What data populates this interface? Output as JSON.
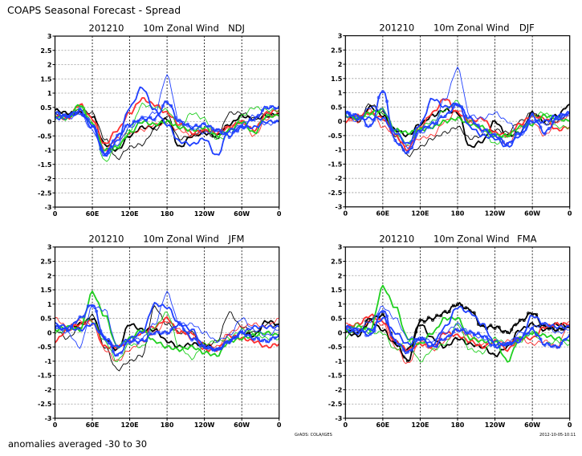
{
  "header": {
    "title": "COAPS Seasonal Forecast - Spread",
    "footnote": "anomalies averaged -30 to 30",
    "credit": "GrADS: COLA/IGES",
    "timestamp": "2012-10-05-10:11"
  },
  "colors": {
    "black": "#000000",
    "red": "#ff3030",
    "green": "#20d020",
    "blue": "#2040ff"
  },
  "chart_data": [
    {
      "type": "line",
      "init": "201210",
      "variable": "10m Zonal Wind",
      "season": "NDJ",
      "x": [
        0,
        20,
        40,
        60,
        80,
        100,
        120,
        140,
        160,
        180,
        200,
        220,
        240,
        260,
        280,
        300,
        320,
        340,
        360
      ],
      "xlim": [
        0,
        360
      ],
      "ylim": [
        -3,
        3
      ],
      "xticks": [
        "0",
        "60E",
        "120E",
        "180",
        "120W",
        "60W",
        "0"
      ],
      "yticks": [
        "3",
        "2.5",
        "2",
        "1.5",
        "1",
        "0.5",
        "0",
        "-0.5",
        "-1",
        "-1.5",
        "-2",
        "-2.5",
        "-3"
      ],
      "grid": true,
      "series": [
        {
          "color": "black",
          "style": "thick",
          "values": [
            0.4,
            0.3,
            0.3,
            0.2,
            -0.8,
            -1.0,
            -0.5,
            -0.2,
            -0.2,
            0.1,
            -0.9,
            -0.5,
            -0.4,
            -0.5,
            -0.1,
            0.2,
            0.1,
            0.2,
            0.3
          ]
        },
        {
          "color": "black",
          "style": "thin",
          "values": [
            0.3,
            0.2,
            0.4,
            0.3,
            -0.6,
            -1.3,
            -0.9,
            -0.8,
            -0.3,
            0.2,
            -0.6,
            -0.5,
            -0.3,
            -0.6,
            0.3,
            0.3,
            0.1,
            0.3,
            0.2
          ]
        },
        {
          "color": "red",
          "style": "thick",
          "values": [
            0.2,
            0.1,
            0.6,
            0.1,
            -0.8,
            -0.3,
            0.3,
            0.8,
            0.6,
            0.3,
            -0.1,
            -0.4,
            -0.3,
            -0.4,
            -0.2,
            0.0,
            -0.3,
            0.3,
            0.4
          ]
        },
        {
          "color": "red",
          "style": "thin",
          "values": [
            0.1,
            0.2,
            0.3,
            0.0,
            -1.0,
            -0.6,
            -0.4,
            -0.3,
            -0.1,
            -0.1,
            -0.3,
            -0.5,
            -0.3,
            -0.3,
            -0.2,
            0.0,
            -0.5,
            0.1,
            0.3
          ]
        },
        {
          "color": "green",
          "style": "thick",
          "values": [
            0.2,
            0.1,
            0.6,
            -0.1,
            -1.0,
            -0.9,
            -0.4,
            0.0,
            -0.1,
            0.0,
            -0.2,
            -0.3,
            -0.2,
            -0.5,
            -0.3,
            0.0,
            -0.4,
            0.2,
            0.2
          ]
        },
        {
          "color": "green",
          "style": "thin",
          "values": [
            0.1,
            0.2,
            0.5,
            0.0,
            -1.4,
            -0.9,
            -0.3,
            0.6,
            0.5,
            0.4,
            -0.2,
            0.3,
            0.1,
            -0.6,
            -0.5,
            0.2,
            0.5,
            0.4,
            0.4
          ]
        },
        {
          "color": "blue",
          "style": "thick",
          "values": [
            0.1,
            0.2,
            0.3,
            -0.2,
            -1.1,
            -0.7,
            0.5,
            1.2,
            0.4,
            -0.1,
            -0.7,
            -0.8,
            -0.6,
            -1.2,
            -0.3,
            -0.2,
            -0.2,
            0.0,
            0.0
          ]
        },
        {
          "color": "blue",
          "style": "thin",
          "values": [
            0.2,
            0.1,
            0.3,
            -0.3,
            -1.2,
            -0.8,
            -0.2,
            0.1,
            0.3,
            1.6,
            0.0,
            -0.2,
            -0.4,
            -0.3,
            -0.4,
            -0.1,
            0.2,
            -0.1,
            0.0
          ]
        },
        {
          "color": "blue",
          "style": "circles",
          "values": [
            0.3,
            0.2,
            0.4,
            -0.1,
            -1.2,
            -0.5,
            -0.1,
            0.1,
            0.1,
            0.7,
            0.0,
            -0.2,
            -0.1,
            -0.3,
            -0.5,
            -0.2,
            0.1,
            0.5,
            0.5
          ]
        }
      ]
    },
    {
      "type": "line",
      "init": "201210",
      "variable": "10m Zonal Wind",
      "season": "DJF",
      "x": [
        0,
        20,
        40,
        60,
        80,
        100,
        120,
        140,
        160,
        180,
        200,
        220,
        240,
        260,
        280,
        300,
        320,
        340,
        360
      ],
      "xlim": [
        0,
        360
      ],
      "ylim": [
        -3,
        3
      ],
      "xticks": [
        "0",
        "60E",
        "120E",
        "180",
        "120W",
        "60W",
        "0"
      ],
      "yticks": [
        "3",
        "2.5",
        "2",
        "1.5",
        "1",
        "0.5",
        "0",
        "-0.5",
        "-1",
        "-1.5",
        "-2",
        "-2.5",
        "-3"
      ],
      "grid": true,
      "series": [
        {
          "color": "black",
          "style": "thick",
          "values": [
            0.3,
            0.0,
            0.5,
            0.2,
            -0.3,
            -0.5,
            -0.1,
            0.2,
            0.4,
            0.3,
            -0.9,
            -0.7,
            0.0,
            -0.5,
            -0.4,
            0.3,
            0.0,
            0.2,
            0.6
          ]
        },
        {
          "color": "black",
          "style": "thin",
          "values": [
            0.2,
            0.1,
            0.6,
            0.3,
            -0.5,
            -1.2,
            -0.9,
            -0.6,
            -0.4,
            -0.2,
            -0.6,
            -0.5,
            -0.3,
            -0.4,
            0.0,
            0.3,
            -0.1,
            0.0,
            0.3
          ]
        },
        {
          "color": "red",
          "style": "thick",
          "values": [
            0.0,
            0.2,
            0.3,
            0.1,
            -0.5,
            -1.0,
            -0.2,
            0.3,
            0.8,
            0.3,
            0.0,
            0.1,
            -0.4,
            -0.5,
            -0.1,
            0.2,
            0.1,
            -0.3,
            -0.2
          ]
        },
        {
          "color": "red",
          "style": "thin",
          "values": [
            0.1,
            0.0,
            0.4,
            -0.2,
            -0.4,
            -0.9,
            -0.6,
            -0.5,
            0.0,
            0.4,
            0.0,
            -0.3,
            -0.5,
            -0.8,
            -0.2,
            0.0,
            -0.5,
            0.0,
            0.2
          ]
        },
        {
          "color": "green",
          "style": "thick",
          "values": [
            0.2,
            0.1,
            0.3,
            0.4,
            -0.3,
            -0.4,
            -0.3,
            -0.2,
            0.0,
            0.1,
            -0.1,
            -0.2,
            -0.5,
            -0.5,
            -0.2,
            -0.1,
            0.2,
            0.1,
            0.0
          ]
        },
        {
          "color": "green",
          "style": "thin",
          "values": [
            0.3,
            0.1,
            0.2,
            0.3,
            -0.4,
            -0.8,
            -0.2,
            0.0,
            0.4,
            0.7,
            0.0,
            -0.3,
            -0.8,
            -0.5,
            -0.4,
            0.2,
            0.3,
            -0.2,
            -0.2
          ]
        },
        {
          "color": "blue",
          "style": "thick",
          "values": [
            0.3,
            0.1,
            0.1,
            0.1,
            -0.4,
            -0.8,
            -0.1,
            0.8,
            0.5,
            0.6,
            -0.2,
            -0.5,
            -0.6,
            -0.9,
            -0.5,
            0.0,
            0.0,
            0.2,
            0.3
          ]
        },
        {
          "color": "blue",
          "style": "thin",
          "values": [
            0.2,
            0.0,
            0.5,
            0.4,
            -0.3,
            -0.9,
            -0.4,
            -0.2,
            0.8,
            1.85,
            0.2,
            0.1,
            0.3,
            0.0,
            -0.5,
            0.0,
            -0.1,
            0.1,
            0.2
          ]
        },
        {
          "color": "blue",
          "style": "circles",
          "values": [
            0.3,
            0.2,
            -0.2,
            1.1,
            -0.7,
            -1.1,
            -0.3,
            -0.1,
            0.2,
            0.6,
            0.1,
            -0.3,
            -0.5,
            -0.8,
            -0.4,
            0.2,
            -0.4,
            0.1,
            0.3
          ]
        }
      ]
    },
    {
      "type": "line",
      "init": "201210",
      "variable": "10m Zonal Wind",
      "season": "JFM",
      "x": [
        0,
        20,
        40,
        60,
        80,
        100,
        120,
        140,
        160,
        180,
        200,
        220,
        240,
        260,
        280,
        300,
        320,
        340,
        360
      ],
      "xlim": [
        0,
        360
      ],
      "ylim": [
        -3,
        3
      ],
      "xticks": [
        "0",
        "60E",
        "120E",
        "180",
        "120W",
        "60W",
        "0"
      ],
      "yticks": [
        "3",
        "2.5",
        "2",
        "1.5",
        "1",
        "0.5",
        "0",
        "-0.5",
        "-1",
        "-1.5",
        "-2",
        "-2.5",
        "-3"
      ],
      "grid": true,
      "series": [
        {
          "color": "black",
          "style": "thick",
          "values": [
            0.2,
            0.1,
            0.3,
            0.5,
            -0.2,
            -0.6,
            0.3,
            0.1,
            0.1,
            -0.3,
            -0.5,
            -0.4,
            -0.4,
            -0.6,
            -0.3,
            0.0,
            -0.1,
            0.4,
            0.3
          ]
        },
        {
          "color": "black",
          "style": "thin",
          "values": [
            0.1,
            -0.2,
            0.2,
            0.6,
            -0.5,
            -1.3,
            -1.0,
            -0.8,
            0.9,
            0.3,
            0.0,
            0.0,
            -0.5,
            -0.3,
            0.7,
            0.2,
            0.0,
            0.3,
            0.2
          ]
        },
        {
          "color": "red",
          "style": "thick",
          "values": [
            -0.3,
            0.1,
            0.3,
            0.4,
            -0.5,
            -0.5,
            -0.3,
            0.0,
            0.2,
            0.5,
            0.0,
            0.0,
            -0.6,
            -0.6,
            -0.1,
            -0.2,
            -0.3,
            -0.5,
            -0.4
          ]
        },
        {
          "color": "red",
          "style": "thin",
          "values": [
            0.5,
            0.2,
            0.4,
            0.3,
            -0.6,
            -1.0,
            -0.6,
            -0.3,
            0.0,
            0.4,
            0.1,
            -0.2,
            -0.4,
            -0.5,
            0.0,
            0.2,
            0.3,
            0.2,
            0.5
          ]
        },
        {
          "color": "green",
          "style": "thick",
          "values": [
            0.1,
            0.2,
            0.1,
            1.4,
            0.6,
            -0.5,
            -0.2,
            0.1,
            -0.3,
            -0.5,
            -0.6,
            -0.5,
            -0.7,
            -0.8,
            -0.3,
            -0.2,
            -0.1,
            0.0,
            -0.1
          ]
        },
        {
          "color": "green",
          "style": "thin",
          "values": [
            0.0,
            0.1,
            0.5,
            0.4,
            -0.3,
            -1.0,
            -0.4,
            -0.5,
            0.2,
            0.7,
            -0.5,
            -0.9,
            -0.4,
            -0.3,
            -0.2,
            0.1,
            0.0,
            -0.2,
            -0.2
          ]
        },
        {
          "color": "blue",
          "style": "thick",
          "values": [
            0.3,
            0.2,
            0.1,
            0.3,
            -0.2,
            -0.5,
            -0.2,
            0.0,
            1.0,
            0.9,
            0.3,
            0.1,
            -0.5,
            -0.6,
            -0.3,
            0.0,
            0.2,
            0.2,
            0.2
          ]
        },
        {
          "color": "blue",
          "style": "thin",
          "values": [
            0.2,
            0.0,
            -0.5,
            0.9,
            0.8,
            -0.5,
            -0.3,
            -0.2,
            0.3,
            1.4,
            0.3,
            0.3,
            0.0,
            -0.3,
            -0.1,
            0.5,
            0.1,
            -0.1,
            0.1
          ]
        },
        {
          "color": "blue",
          "style": "circles",
          "values": [
            0.2,
            0.1,
            0.5,
            1.0,
            -0.2,
            -0.8,
            -0.3,
            -0.3,
            0.0,
            0.0,
            0.3,
            -0.2,
            -0.5,
            -0.6,
            -0.3,
            0.0,
            -0.2,
            -0.3,
            -0.1
          ]
        }
      ]
    },
    {
      "type": "line",
      "init": "201210",
      "variable": "10m Zonal Wind",
      "season": "FMA",
      "x": [
        0,
        20,
        40,
        60,
        80,
        100,
        120,
        140,
        160,
        180,
        200,
        220,
        240,
        260,
        280,
        300,
        320,
        340,
        360
      ],
      "xlim": [
        0,
        360
      ],
      "ylim": [
        -3,
        3
      ],
      "xticks": [
        "0",
        "60E",
        "120E",
        "180",
        "120W",
        "60W",
        "0"
      ],
      "yticks": [
        "3",
        "2.5",
        "2",
        "1.5",
        "1",
        "0.5",
        "0",
        "-0.5",
        "-1",
        "-1.5",
        "-2",
        "-2.5",
        "-3"
      ],
      "grid": true,
      "series": [
        {
          "color": "black",
          "style": "thick",
          "values": [
            0.0,
            -0.1,
            0.4,
            0.1,
            -0.4,
            -0.6,
            0.3,
            -0.2,
            -0.5,
            -0.2,
            -0.4,
            -0.5,
            -0.8,
            -0.5,
            0.1,
            0.3,
            0.1,
            0.3,
            0.2
          ]
        },
        {
          "color": "black",
          "style": "circles",
          "values": [
            0.1,
            0.0,
            0.5,
            0.6,
            -0.3,
            -1.0,
            0.4,
            0.5,
            0.7,
            1.0,
            0.8,
            0.2,
            0.2,
            0.0,
            0.4,
            0.7,
            0.2,
            0.1,
            0.2
          ]
        },
        {
          "color": "red",
          "style": "thick",
          "values": [
            0.2,
            0.3,
            0.6,
            0.4,
            -0.3,
            -0.6,
            -0.4,
            -0.5,
            0.0,
            -0.1,
            -0.3,
            -0.5,
            -0.3,
            -0.6,
            -0.2,
            -0.2,
            0.2,
            0.3,
            0.3
          ]
        },
        {
          "color": "red",
          "style": "thin",
          "values": [
            0.3,
            0.1,
            0.4,
            0.3,
            -0.5,
            -1.1,
            -0.3,
            -0.6,
            -0.3,
            0.1,
            -0.1,
            -0.4,
            -0.4,
            -0.3,
            -0.2,
            -0.4,
            -0.3,
            -0.5,
            0.4
          ]
        },
        {
          "color": "green",
          "style": "thick",
          "values": [
            0.1,
            0.2,
            0.1,
            1.6,
            0.9,
            -0.2,
            -0.4,
            0.0,
            0.5,
            0.5,
            -0.2,
            -0.3,
            -0.3,
            -1.0,
            -0.2,
            0.0,
            -0.1,
            -0.2,
            -0.3
          ]
        },
        {
          "color": "green",
          "style": "thin",
          "values": [
            -0.2,
            0.3,
            0.0,
            0.0,
            -0.6,
            -0.3,
            -1.0,
            -0.6,
            -0.4,
            0.3,
            -0.6,
            -0.7,
            -0.2,
            -0.4,
            -0.3,
            0.0,
            -0.4,
            -0.3,
            -0.4
          ]
        },
        {
          "color": "blue",
          "style": "thick",
          "values": [
            0.1,
            0.0,
            0.1,
            0.5,
            0.0,
            -0.4,
            -0.2,
            -0.4,
            0.2,
            0.9,
            0.7,
            0.3,
            -0.4,
            -0.4,
            -0.3,
            0.6,
            0.3,
            0.2,
            0.2
          ]
        },
        {
          "color": "blue",
          "style": "thin",
          "values": [
            0.2,
            0.1,
            0.4,
            0.9,
            0.5,
            -0.2,
            -0.2,
            -0.3,
            0.0,
            0.3,
            0.0,
            -0.2,
            -0.3,
            -0.4,
            0.0,
            0.2,
            0.3,
            0.0,
            0.1
          ]
        },
        {
          "color": "blue",
          "style": "circles",
          "values": [
            0.2,
            0.1,
            -0.1,
            0.8,
            -0.3,
            -0.7,
            -0.2,
            -0.5,
            -0.2,
            0.1,
            0.0,
            -0.1,
            -0.5,
            -0.4,
            -0.2,
            0.1,
            -0.4,
            -0.5,
            -0.1
          ]
        }
      ]
    }
  ]
}
